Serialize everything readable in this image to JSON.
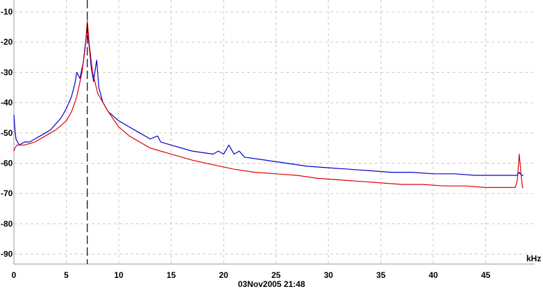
{
  "chart_data": {
    "type": "line",
    "xlabel": "",
    "x_unit": "kHz",
    "ylabel": "",
    "timestamp": "03Nov2005  21:48",
    "xlim": [
      0,
      49
    ],
    "ylim": [
      -93,
      -7
    ],
    "x_ticks": [
      0,
      5,
      10,
      15,
      20,
      25,
      30,
      35,
      40,
      45
    ],
    "y_ticks": [
      -10,
      -20,
      -30,
      -40,
      -50,
      -60,
      -70,
      -80,
      -90
    ],
    "grid": true,
    "marker_line_x": 7.0,
    "colors": {
      "blue_series": "#0000cc",
      "red_series": "#dd0000",
      "grid": "#c8c8c8",
      "marker": "#000000"
    },
    "series": [
      {
        "color": "#0000cc",
        "points": [
          [
            0.0,
            -44
          ],
          [
            0.1,
            -49
          ],
          [
            0.2,
            -52
          ],
          [
            0.5,
            -54
          ],
          [
            1.0,
            -53
          ],
          [
            1.5,
            -53
          ],
          [
            2.0,
            -52
          ],
          [
            2.5,
            -51
          ],
          [
            3.0,
            -50
          ],
          [
            3.5,
            -49
          ],
          [
            4.0,
            -47
          ],
          [
            4.5,
            -45
          ],
          [
            5.0,
            -42
          ],
          [
            5.5,
            -38
          ],
          [
            5.8,
            -34
          ],
          [
            6.0,
            -30
          ],
          [
            6.3,
            -32
          ],
          [
            6.6,
            -27
          ],
          [
            6.9,
            -18
          ],
          [
            7.0,
            -16
          ],
          [
            7.2,
            -22
          ],
          [
            7.4,
            -29
          ],
          [
            7.6,
            -33
          ],
          [
            7.8,
            -28
          ],
          [
            7.9,
            -26
          ],
          [
            8.1,
            -35
          ],
          [
            8.5,
            -40
          ],
          [
            9.0,
            -43
          ],
          [
            10.0,
            -46
          ],
          [
            11.0,
            -48
          ],
          [
            12.0,
            -50
          ],
          [
            13.0,
            -52
          ],
          [
            13.7,
            -51
          ],
          [
            14.0,
            -53
          ],
          [
            15.0,
            -54
          ],
          [
            17.0,
            -56
          ],
          [
            19.0,
            -57
          ],
          [
            19.5,
            -56
          ],
          [
            20.0,
            -57
          ],
          [
            20.5,
            -54
          ],
          [
            21.0,
            -57
          ],
          [
            21.5,
            -56
          ],
          [
            22.0,
            -58
          ],
          [
            24.0,
            -59
          ],
          [
            26.0,
            -60
          ],
          [
            28.0,
            -61
          ],
          [
            30.0,
            -61.5
          ],
          [
            32.0,
            -62
          ],
          [
            34.0,
            -62.5
          ],
          [
            36.0,
            -63
          ],
          [
            38.0,
            -63
          ],
          [
            40.0,
            -63.5
          ],
          [
            42.0,
            -63.5
          ],
          [
            44.0,
            -64
          ],
          [
            46.0,
            -64
          ],
          [
            47.5,
            -64
          ],
          [
            48.0,
            -64
          ],
          [
            48.2,
            -63
          ],
          [
            48.4,
            -64
          ],
          [
            48.6,
            -64
          ]
        ]
      },
      {
        "color": "#dd0000",
        "points": [
          [
            0.0,
            -56
          ],
          [
            0.1,
            -55
          ],
          [
            0.3,
            -54
          ],
          [
            1.0,
            -54
          ],
          [
            2.0,
            -53
          ],
          [
            3.0,
            -51
          ],
          [
            4.0,
            -49
          ],
          [
            5.0,
            -46
          ],
          [
            5.5,
            -43
          ],
          [
            6.0,
            -38
          ],
          [
            6.5,
            -30
          ],
          [
            6.8,
            -22
          ],
          [
            7.0,
            -13
          ],
          [
            7.2,
            -21
          ],
          [
            7.5,
            -30
          ],
          [
            8.0,
            -37
          ],
          [
            9.0,
            -43
          ],
          [
            10.0,
            -48
          ],
          [
            11.0,
            -51
          ],
          [
            12.0,
            -53
          ],
          [
            13.0,
            -55
          ],
          [
            14.0,
            -56
          ],
          [
            15.0,
            -57
          ],
          [
            17.0,
            -59
          ],
          [
            19.0,
            -60.5
          ],
          [
            21.0,
            -62
          ],
          [
            23.0,
            -63
          ],
          [
            25.0,
            -63.5
          ],
          [
            27.0,
            -64
          ],
          [
            29.0,
            -65
          ],
          [
            31.0,
            -65.5
          ],
          [
            33.0,
            -66
          ],
          [
            35.0,
            -66.5
          ],
          [
            37.0,
            -67
          ],
          [
            39.0,
            -67
          ],
          [
            41.0,
            -67.5
          ],
          [
            43.0,
            -67.5
          ],
          [
            45.0,
            -68
          ],
          [
            47.0,
            -68
          ],
          [
            47.8,
            -68
          ],
          [
            48.0,
            -66
          ],
          [
            48.2,
            -57
          ],
          [
            48.35,
            -63
          ],
          [
            48.5,
            -68
          ],
          [
            48.6,
            -68
          ]
        ]
      }
    ]
  }
}
